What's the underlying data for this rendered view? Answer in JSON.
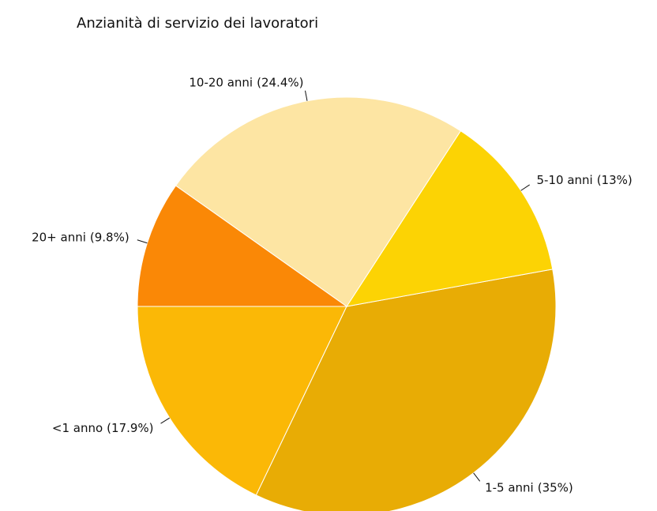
{
  "chart_data": {
    "type": "pie",
    "title": "Anzianità di servizio dei lavoratori",
    "categories": [
      "<1 anno",
      "1-5 anni",
      "5-10 anni",
      "10-20 anni",
      "20+ anni"
    ],
    "values": [
      17.9,
      35,
      13,
      24.4,
      9.8
    ],
    "value_labels": [
      "(17.9%)",
      "(35%)",
      "(13%)",
      "(24.4%)",
      "(9.8%)"
    ],
    "colors": [
      "#fbb806",
      "#e8ac05",
      "#fcd304",
      "#fde5a3",
      "#fa8806"
    ],
    "start_angle": 180
  }
}
